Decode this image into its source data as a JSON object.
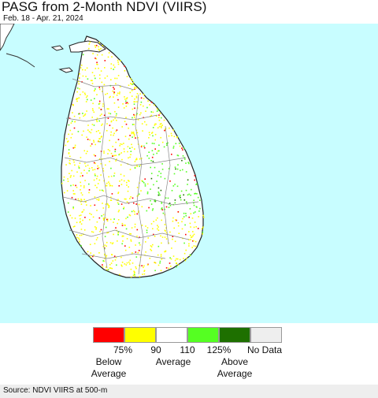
{
  "header": {
    "title": "PASG from 2-Month NDVI (VIIRS)",
    "date_range": "Feb. 18 - Apr. 21, 2024"
  },
  "map": {
    "ocean_color": "#c8fdff",
    "land_color": "#ffffff",
    "boundary_color": "#888888"
  },
  "legend": {
    "items": [
      {
        "color": "#ff0000",
        "tick": "75%"
      },
      {
        "color": "#ffff00",
        "tick": "90"
      },
      {
        "color": "#ffffff",
        "tick": "110"
      },
      {
        "color": "#55ff22",
        "tick": "125%"
      },
      {
        "color": "#1e7000",
        "tick": "No Data"
      },
      {
        "color": "#eeeeee",
        "tick": ""
      }
    ],
    "below": [
      "Below",
      "Average"
    ],
    "average": "Average",
    "above": [
      "Above",
      "Average"
    ]
  },
  "footer": {
    "source": "Source: NDVI VIIRS at 500-m"
  }
}
